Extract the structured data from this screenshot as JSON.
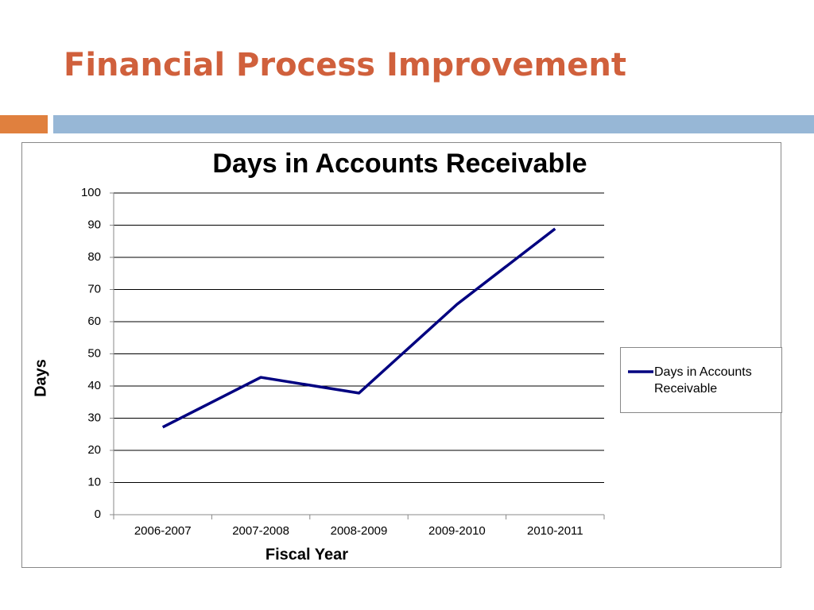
{
  "slide_title": "Financial Process Improvement",
  "chart_data": {
    "type": "line",
    "title": "Days in Accounts Receivable",
    "x_label": "Fiscal Year",
    "y_label": "Days",
    "categories": [
      "2006-2007",
      "2007-2008",
      "2008-2009",
      "2009-2010",
      "2010-2011"
    ],
    "series": [
      {
        "name": "Days in Accounts Receivable",
        "color": "#000080",
        "values": [
          27.2,
          42.7,
          37.8,
          65.4,
          88.9
        ]
      }
    ],
    "ylim": [
      0,
      100
    ],
    "yticks": [
      0,
      10,
      20,
      30,
      40,
      50,
      60,
      70,
      80,
      90,
      100
    ],
    "grid": true,
    "legend": "right"
  }
}
